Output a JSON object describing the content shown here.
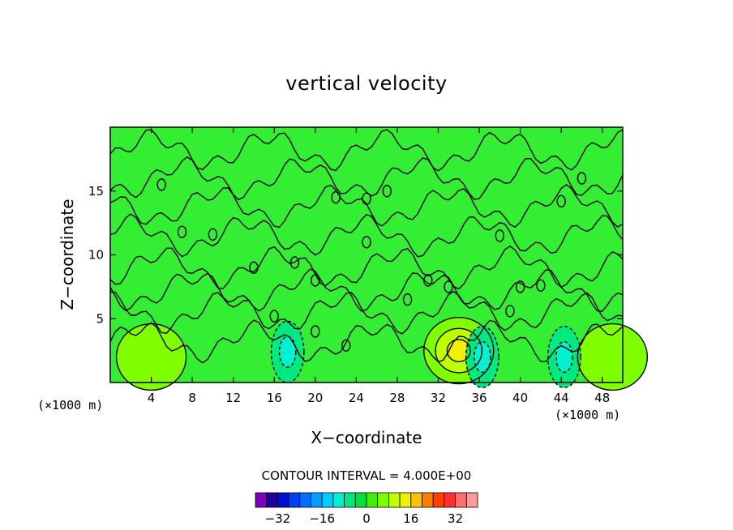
{
  "chart_data": {
    "type": "heatmap",
    "title": "vertical velocity",
    "xlabel": "X−coordinate",
    "ylabel": "Z−coordinate",
    "x_unit_left": "(×1000 m)",
    "x_unit_right": "(×1000 m)",
    "xlim": [
      0,
      50
    ],
    "ylim": [
      0,
      20
    ],
    "x_ticks": [
      4,
      8,
      12,
      16,
      20,
      24,
      28,
      32,
      36,
      40,
      44,
      48
    ],
    "x_tick_labels": [
      "4",
      "8",
      "12",
      "16",
      "20",
      "24",
      "28",
      "32",
      "36",
      "40",
      "44",
      "48"
    ],
    "y_ticks": [
      5,
      10,
      15
    ],
    "y_tick_labels": [
      "5",
      "10",
      "15"
    ],
    "contour_interval_text": "CONTOUR INTERVAL = 4.000E+00",
    "contour_interval": 4,
    "colorbar": {
      "levels": [
        -36,
        -32,
        -28,
        -24,
        -20,
        -16,
        -12,
        -8,
        -4,
        0,
        4,
        8,
        12,
        16,
        20,
        24,
        28,
        32,
        36
      ],
      "colors": [
        "#8000c0",
        "#2000a0",
        "#0010d0",
        "#0040f0",
        "#0070ff",
        "#00a0ff",
        "#00d0ff",
        "#00f0d0",
        "#00e880",
        "#00e040",
        "#40f000",
        "#80ff00",
        "#c0ff00",
        "#f0f000",
        "#ffc000",
        "#ff8000",
        "#ff4000",
        "#ff3030",
        "#ff7070",
        "#ff9999"
      ],
      "tick_values": [
        -32,
        -16,
        0,
        16,
        32
      ],
      "tick_labels": [
        "−32",
        "−16",
        "0",
        "16",
        "32"
      ]
    },
    "background_color": "#33ee33",
    "features": [
      {
        "kind": "updraft",
        "x": 34,
        "z": 2.5,
        "peak": 12
      },
      {
        "kind": "updraft",
        "x": 4,
        "z": 2.0,
        "peak": 6
      },
      {
        "kind": "updraft",
        "x": 49,
        "z": 2.0,
        "peak": 4
      },
      {
        "kind": "downdraft",
        "x": 17.3,
        "z": 2.4,
        "peak": -8
      },
      {
        "kind": "downdraft",
        "x": 36.3,
        "z": 2.0,
        "peak": -8
      },
      {
        "kind": "downdraft",
        "x": 44.3,
        "z": 2.0,
        "peak": -8
      }
    ]
  }
}
